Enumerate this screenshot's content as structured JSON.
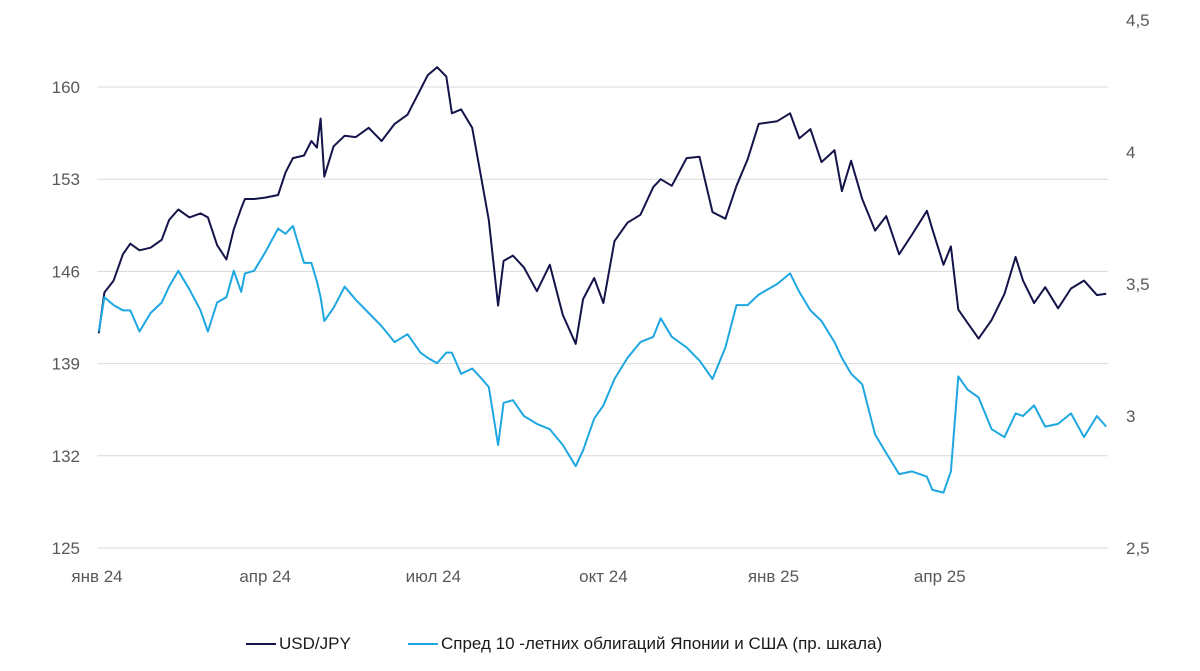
{
  "chart_data": {
    "type": "line",
    "x_labels": [
      "янв 24",
      "апр 24",
      "июл 24",
      "окт 24",
      "янв 25",
      "апр 25"
    ],
    "left_axis": {
      "ticks": [
        "125",
        "132",
        "139",
        "146",
        "153",
        "160"
      ],
      "range": [
        125,
        160
      ]
    },
    "right_axis": {
      "ticks": [
        "2,5",
        "3",
        "3,5",
        "4",
        "4,5"
      ],
      "range": [
        2.5,
        4.5
      ]
    },
    "grid": true,
    "legend_position": "bottom",
    "colors": {
      "usdjpy": "#14144a",
      "spread": "#1ea7e1",
      "grid": "#d9d9d9"
    },
    "series": [
      {
        "name": "USD/JPY",
        "axis": "left",
        "color": "#14144a",
        "x": [
          "2024-01-02",
          "2024-01-05",
          "2024-01-10",
          "2024-01-15",
          "2024-01-19",
          "2024-01-24",
          "2024-01-30",
          "2024-02-05",
          "2024-02-09",
          "2024-02-14",
          "2024-02-20",
          "2024-02-26",
          "2024-03-01",
          "2024-03-06",
          "2024-03-11",
          "2024-03-15",
          "2024-03-19",
          "2024-03-21",
          "2024-03-26",
          "2024-04-01",
          "2024-04-08",
          "2024-04-12",
          "2024-04-16",
          "2024-04-22",
          "2024-04-26",
          "2024-04-29",
          "2024-05-01",
          "2024-05-03",
          "2024-05-08",
          "2024-05-14",
          "2024-05-20",
          "2024-05-27",
          "2024-06-03",
          "2024-06-10",
          "2024-06-17",
          "2024-06-24",
          "2024-06-28",
          "2024-07-03",
          "2024-07-08",
          "2024-07-11",
          "2024-07-16",
          "2024-07-22",
          "2024-07-26",
          "2024-07-31",
          "2024-08-05",
          "2024-08-08",
          "2024-08-13",
          "2024-08-19",
          "2024-08-26",
          "2024-09-02",
          "2024-09-09",
          "2024-09-16",
          "2024-09-20",
          "2024-09-26",
          "2024-10-01",
          "2024-10-07",
          "2024-10-14",
          "2024-10-21",
          "2024-10-28",
          "2024-11-01",
          "2024-11-07",
          "2024-11-15",
          "2024-11-22",
          "2024-11-29",
          "2024-12-06",
          "2024-12-12",
          "2024-12-18",
          "2024-12-24",
          "2025-01-03",
          "2025-01-10",
          "2025-01-15",
          "2025-01-21",
          "2025-01-27",
          "2025-02-03",
          "2025-02-07",
          "2025-02-12",
          "2025-02-18",
          "2025-02-25",
          "2025-03-03",
          "2025-03-10",
          "2025-03-17",
          "2025-03-25",
          "2025-03-28",
          "2025-04-03",
          "2025-04-07",
          "2025-04-11",
          "2025-04-16",
          "2025-04-22",
          "2025-04-29",
          "2025-05-06",
          "2025-05-12",
          "2025-05-16",
          "2025-05-22",
          "2025-05-28",
          "2025-06-04",
          "2025-06-11",
          "2025-06-18",
          "2025-06-25",
          "2025-06-30"
        ],
        "values": [
          141.3,
          144.4,
          145.3,
          147.3,
          148.1,
          147.6,
          147.8,
          148.4,
          149.9,
          150.7,
          150.1,
          150.4,
          150.1,
          148.0,
          146.9,
          149.2,
          150.8,
          151.5,
          151.5,
          151.6,
          151.8,
          153.5,
          154.6,
          154.8,
          155.9,
          155.4,
          157.6,
          153.2,
          155.5,
          156.3,
          156.2,
          156.9,
          155.9,
          157.2,
          157.9,
          159.8,
          160.9,
          161.5,
          160.8,
          158.0,
          158.3,
          156.9,
          153.8,
          149.9,
          143.4,
          146.8,
          147.2,
          146.3,
          144.5,
          146.5,
          142.7,
          140.5,
          143.9,
          145.5,
          143.6,
          148.3,
          149.7,
          150.3,
          152.4,
          153.0,
          152.5,
          154.6,
          154.7,
          150.5,
          150.0,
          152.5,
          154.5,
          157.2,
          157.4,
          158.0,
          156.1,
          156.8,
          154.3,
          155.2,
          152.1,
          154.4,
          151.5,
          149.1,
          150.2,
          147.3,
          148.8,
          150.6,
          149.2,
          146.5,
          147.9,
          143.1,
          142.1,
          140.9,
          142.3,
          144.3,
          147.1,
          145.3,
          143.6,
          144.8,
          143.2,
          144.7,
          145.3,
          144.2,
          144.3
        ]
      },
      {
        "name": "Спред 10 -летних облигаций Японии и США (пр. шкала)",
        "axis": "right",
        "color": "#1ea7e1",
        "x": [
          "2024-01-02",
          "2024-01-05",
          "2024-01-10",
          "2024-01-15",
          "2024-01-19",
          "2024-01-24",
          "2024-01-30",
          "2024-02-05",
          "2024-02-09",
          "2024-02-14",
          "2024-02-20",
          "2024-02-26",
          "2024-03-01",
          "2024-03-06",
          "2024-03-11",
          "2024-03-15",
          "2024-03-19",
          "2024-03-21",
          "2024-03-26",
          "2024-04-01",
          "2024-04-08",
          "2024-04-12",
          "2024-04-16",
          "2024-04-22",
          "2024-04-26",
          "2024-04-29",
          "2024-05-01",
          "2024-05-03",
          "2024-05-08",
          "2024-05-14",
          "2024-05-20",
          "2024-05-27",
          "2024-06-03",
          "2024-06-10",
          "2024-06-17",
          "2024-06-24",
          "2024-06-28",
          "2024-07-03",
          "2024-07-08",
          "2024-07-11",
          "2024-07-16",
          "2024-07-22",
          "2024-07-26",
          "2024-07-31",
          "2024-08-05",
          "2024-08-08",
          "2024-08-13",
          "2024-08-19",
          "2024-08-26",
          "2024-09-02",
          "2024-09-09",
          "2024-09-16",
          "2024-09-20",
          "2024-09-26",
          "2024-10-01",
          "2024-10-07",
          "2024-10-14",
          "2024-10-21",
          "2024-10-28",
          "2024-11-01",
          "2024-11-07",
          "2024-11-15",
          "2024-11-22",
          "2024-11-29",
          "2024-12-06",
          "2024-12-12",
          "2024-12-18",
          "2024-12-24",
          "2025-01-03",
          "2025-01-10",
          "2025-01-15",
          "2025-01-21",
          "2025-01-27",
          "2025-02-03",
          "2025-02-07",
          "2025-02-12",
          "2025-02-18",
          "2025-02-25",
          "2025-03-03",
          "2025-03-10",
          "2025-03-17",
          "2025-03-25",
          "2025-03-28",
          "2025-04-03",
          "2025-04-07",
          "2025-04-11",
          "2025-04-16",
          "2025-04-22",
          "2025-04-29",
          "2025-05-06",
          "2025-05-12",
          "2025-05-16",
          "2025-05-22",
          "2025-05-28",
          "2025-06-04",
          "2025-06-11",
          "2025-06-18",
          "2025-06-25",
          "2025-06-30"
        ],
        "values": [
          3.32,
          3.45,
          3.42,
          3.4,
          3.4,
          3.32,
          3.39,
          3.43,
          3.49,
          3.55,
          3.48,
          3.4,
          3.32,
          3.43,
          3.45,
          3.55,
          3.47,
          3.54,
          3.55,
          3.62,
          3.71,
          3.69,
          3.72,
          3.58,
          3.58,
          3.51,
          3.45,
          3.36,
          3.41,
          3.49,
          3.44,
          3.39,
          3.34,
          3.28,
          3.31,
          3.24,
          3.22,
          3.2,
          3.24,
          3.24,
          3.16,
          3.18,
          3.15,
          3.11,
          2.89,
          3.05,
          3.06,
          3.0,
          2.97,
          2.95,
          2.89,
          2.81,
          2.87,
          2.99,
          3.04,
          3.14,
          3.22,
          3.28,
          3.3,
          3.37,
          3.3,
          3.26,
          3.21,
          3.14,
          3.26,
          3.42,
          3.42,
          3.46,
          3.5,
          3.54,
          3.47,
          3.4,
          3.36,
          3.28,
          3.22,
          3.16,
          3.12,
          2.93,
          2.86,
          2.78,
          2.79,
          2.77,
          2.72,
          2.71,
          2.79,
          3.15,
          3.1,
          3.07,
          2.95,
          2.92,
          3.01,
          3.0,
          3.04,
          2.96,
          2.97,
          3.01,
          2.92,
          3.0,
          2.96
        ]
      }
    ]
  }
}
